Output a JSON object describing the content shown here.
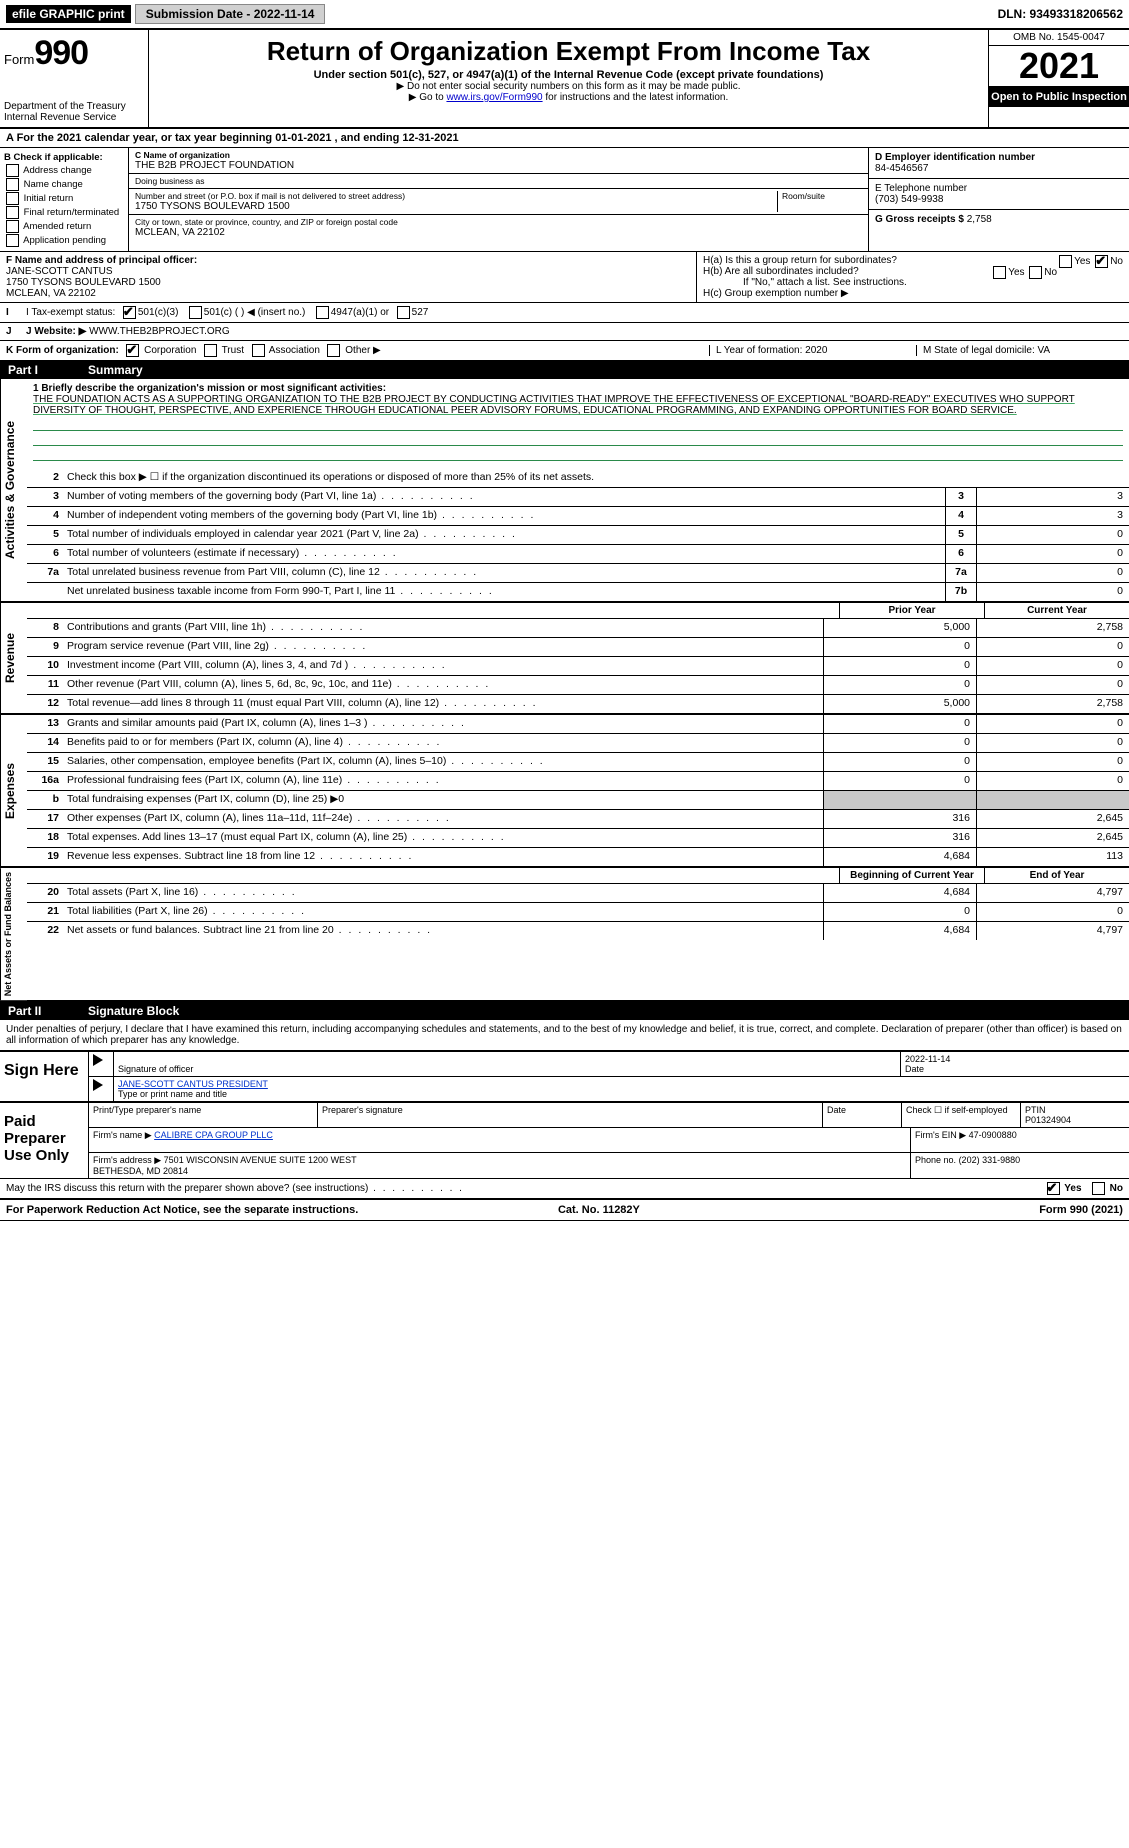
{
  "efile": {
    "label": "efile GRAPHIC print",
    "submission": "Submission Date - 2022-11-14",
    "dln": "DLN: 93493318206562"
  },
  "header": {
    "form_prefix": "Form",
    "form_number": "990",
    "title": "Return of Organization Exempt From Income Tax",
    "subtitle": "Under section 501(c), 527, or 4947(a)(1) of the Internal Revenue Code (except private foundations)",
    "note1": "▶ Do not enter social security numbers on this form as it may be made public.",
    "note2_pre": "▶ Go to ",
    "note2_link": "www.irs.gov/Form990",
    "note2_post": " for instructions and the latest information.",
    "dept": "Department of the Treasury\nInternal Revenue Service",
    "omb": "OMB No. 1545-0047",
    "year": "2021",
    "open": "Open to Public Inspection"
  },
  "rowA": "A For the 2021 calendar year, or tax year beginning 01-01-2021   , and ending 12-31-2021",
  "sectionB": {
    "title": "B Check if applicable:",
    "items": [
      "Address change",
      "Name change",
      "Initial return",
      "Final return/terminated",
      "Amended return",
      "Application pending"
    ]
  },
  "sectionC": {
    "name_label": "C Name of organization",
    "name": "THE B2B PROJECT FOUNDATION",
    "dba_label": "Doing business as",
    "dba": "",
    "addr_label": "Number and street (or P.O. box if mail is not delivered to street address)",
    "room_label": "Room/suite",
    "addr": "1750 TYSONS BOULEVARD 1500",
    "city_label": "City or town, state or province, country, and ZIP or foreign postal code",
    "city": "MCLEAN, VA  22102"
  },
  "sectionD": {
    "label": "D Employer identification number",
    "value": "84-4546567"
  },
  "sectionE": {
    "label": "E Telephone number",
    "value": "(703) 549-9938"
  },
  "sectionG": {
    "label": "G Gross receipts $",
    "value": "2,758"
  },
  "sectionF": {
    "label": "F Name and address of principal officer:",
    "name": "JANE-SCOTT CANTUS",
    "addr1": "1750 TYSONS BOULEVARD 1500",
    "addr2": "MCLEAN, VA  22102"
  },
  "sectionH": {
    "a": "H(a)  Is this a group return for subordinates?",
    "a_yes": "Yes",
    "a_no": "No",
    "b": "H(b)  Are all subordinates included?",
    "b_yes": "Yes",
    "b_no": "No",
    "b_note": "If \"No,\" attach a list. See instructions.",
    "c": "H(c)  Group exemption number ▶"
  },
  "rowI": {
    "label": "I  Tax-exempt status:",
    "opts": [
      "501(c)(3)",
      "501(c) (  ) ◀ (insert no.)",
      "4947(a)(1) or",
      "527"
    ]
  },
  "rowJ": {
    "label": "J  Website: ▶",
    "value": "WWW.THEB2BPROJECT.ORG"
  },
  "rowK": {
    "label": "K Form of organization:",
    "opts": [
      "Corporation",
      "Trust",
      "Association",
      "Other ▶"
    ]
  },
  "rowL": {
    "l": "L Year of formation: 2020",
    "m": "M State of legal domicile: VA"
  },
  "part1": {
    "label": "Part I",
    "title": "Summary"
  },
  "mission": {
    "q": "1  Briefly describe the organization's mission or most significant activities:",
    "text": "THE FOUNDATION ACTS AS A SUPPORTING ORGANIZATION TO THE B2B PROJECT BY CONDUCTING ACTIVITIES THAT IMPROVE THE EFFECTIVENESS OF EXCEPTIONAL \"BOARD-READY\" EXECUTIVES WHO SUPPORT DIVERSITY OF THOUGHT, PERSPECTIVE, AND EXPERIENCE THROUGH EDUCATIONAL PEER ADVISORY FORUMS, EDUCATIONAL PROGRAMMING, AND EXPANDING OPPORTUNITIES FOR BOARD SERVICE."
  },
  "governance": {
    "side": "Activities & Governance",
    "lines": [
      {
        "n": "2",
        "d": "Check this box ▶ ☐ if the organization discontinued its operations or disposed of more than 25% of its net assets."
      },
      {
        "n": "3",
        "d": "Number of voting members of the governing body (Part VI, line 1a)",
        "box": "3",
        "v": "3"
      },
      {
        "n": "4",
        "d": "Number of independent voting members of the governing body (Part VI, line 1b)",
        "box": "4",
        "v": "3"
      },
      {
        "n": "5",
        "d": "Total number of individuals employed in calendar year 2021 (Part V, line 2a)",
        "box": "5",
        "v": "0"
      },
      {
        "n": "6",
        "d": "Total number of volunteers (estimate if necessary)",
        "box": "6",
        "v": "0"
      },
      {
        "n": "7a",
        "d": "Total unrelated business revenue from Part VIII, column (C), line 12",
        "box": "7a",
        "v": "0"
      },
      {
        "n": "",
        "d": "Net unrelated business taxable income from Form 990-T, Part I, line 11",
        "box": "7b",
        "v": "0"
      }
    ]
  },
  "year_headers": {
    "prior": "Prior Year",
    "current": "Current Year"
  },
  "revenue": {
    "side": "Revenue",
    "lines": [
      {
        "n": "8",
        "d": "Contributions and grants (Part VIII, line 1h)",
        "p": "5,000",
        "c": "2,758"
      },
      {
        "n": "9",
        "d": "Program service revenue (Part VIII, line 2g)",
        "p": "0",
        "c": "0"
      },
      {
        "n": "10",
        "d": "Investment income (Part VIII, column (A), lines 3, 4, and 7d )",
        "p": "0",
        "c": "0"
      },
      {
        "n": "11",
        "d": "Other revenue (Part VIII, column (A), lines 5, 6d, 8c, 9c, 10c, and 11e)",
        "p": "0",
        "c": "0"
      },
      {
        "n": "12",
        "d": "Total revenue—add lines 8 through 11 (must equal Part VIII, column (A), line 12)",
        "p": "5,000",
        "c": "2,758"
      }
    ]
  },
  "expenses": {
    "side": "Expenses",
    "lines": [
      {
        "n": "13",
        "d": "Grants and similar amounts paid (Part IX, column (A), lines 1–3 )",
        "p": "0",
        "c": "0"
      },
      {
        "n": "14",
        "d": "Benefits paid to or for members (Part IX, column (A), line 4)",
        "p": "0",
        "c": "0"
      },
      {
        "n": "15",
        "d": "Salaries, other compensation, employee benefits (Part IX, column (A), lines 5–10)",
        "p": "0",
        "c": "0"
      },
      {
        "n": "16a",
        "d": "Professional fundraising fees (Part IX, column (A), line 11e)",
        "p": "0",
        "c": "0"
      },
      {
        "n": "b",
        "d": "Total fundraising expenses (Part IX, column (D), line 25) ▶0",
        "shade": true
      },
      {
        "n": "17",
        "d": "Other expenses (Part IX, column (A), lines 11a–11d, 11f–24e)",
        "p": "316",
        "c": "2,645"
      },
      {
        "n": "18",
        "d": "Total expenses. Add lines 13–17 (must equal Part IX, column (A), line 25)",
        "p": "316",
        "c": "2,645"
      },
      {
        "n": "19",
        "d": "Revenue less expenses. Subtract line 18 from line 12",
        "p": "4,684",
        "c": "113"
      }
    ]
  },
  "netassets": {
    "side": "Net Assets or Fund Balances",
    "headers": {
      "prior": "Beginning of Current Year",
      "current": "End of Year"
    },
    "lines": [
      {
        "n": "20",
        "d": "Total assets (Part X, line 16)",
        "p": "4,684",
        "c": "4,797"
      },
      {
        "n": "21",
        "d": "Total liabilities (Part X, line 26)",
        "p": "0",
        "c": "0"
      },
      {
        "n": "22",
        "d": "Net assets or fund balances. Subtract line 21 from line 20",
        "p": "4,684",
        "c": "4,797"
      }
    ]
  },
  "part2": {
    "label": "Part II",
    "title": "Signature Block",
    "declaration": "Under penalties of perjury, I declare that I have examined this return, including accompanying schedules and statements, and to the best of my knowledge and belief, it is true, correct, and complete. Declaration of preparer (other than officer) is based on all information of which preparer has any knowledge."
  },
  "sign": {
    "label": "Sign Here",
    "sig_officer": "Signature of officer",
    "date": "Date",
    "date_val": "2022-11-14",
    "name": "JANE-SCOTT CANTUS  PRESIDENT",
    "name_label": "Type or print name and title"
  },
  "preparer": {
    "label": "Paid Preparer Use Only",
    "h1": "Print/Type preparer's name",
    "h2": "Preparer's signature",
    "h3": "Date",
    "h4": "Check ☐ if self-employed",
    "h5": "PTIN",
    "ptin": "P01324904",
    "firm_name_l": "Firm's name    ▶",
    "firm_name": "CALIBRE CPA GROUP PLLC",
    "firm_ein_l": "Firm's EIN ▶",
    "firm_ein": "47-0900880",
    "firm_addr_l": "Firm's address ▶",
    "firm_addr": "7501 WISCONSIN AVENUE SUITE 1200 WEST\nBETHESDA, MD  20814",
    "phone_l": "Phone no.",
    "phone": "(202) 331-9880"
  },
  "may_discuss": {
    "q": "May the IRS discuss this return with the preparer shown above? (see instructions)",
    "yes": "Yes",
    "no": "No"
  },
  "footer": {
    "left": "For Paperwork Reduction Act Notice, see the separate instructions.",
    "mid": "Cat. No. 11282Y",
    "right": "Form 990 (2021)"
  }
}
